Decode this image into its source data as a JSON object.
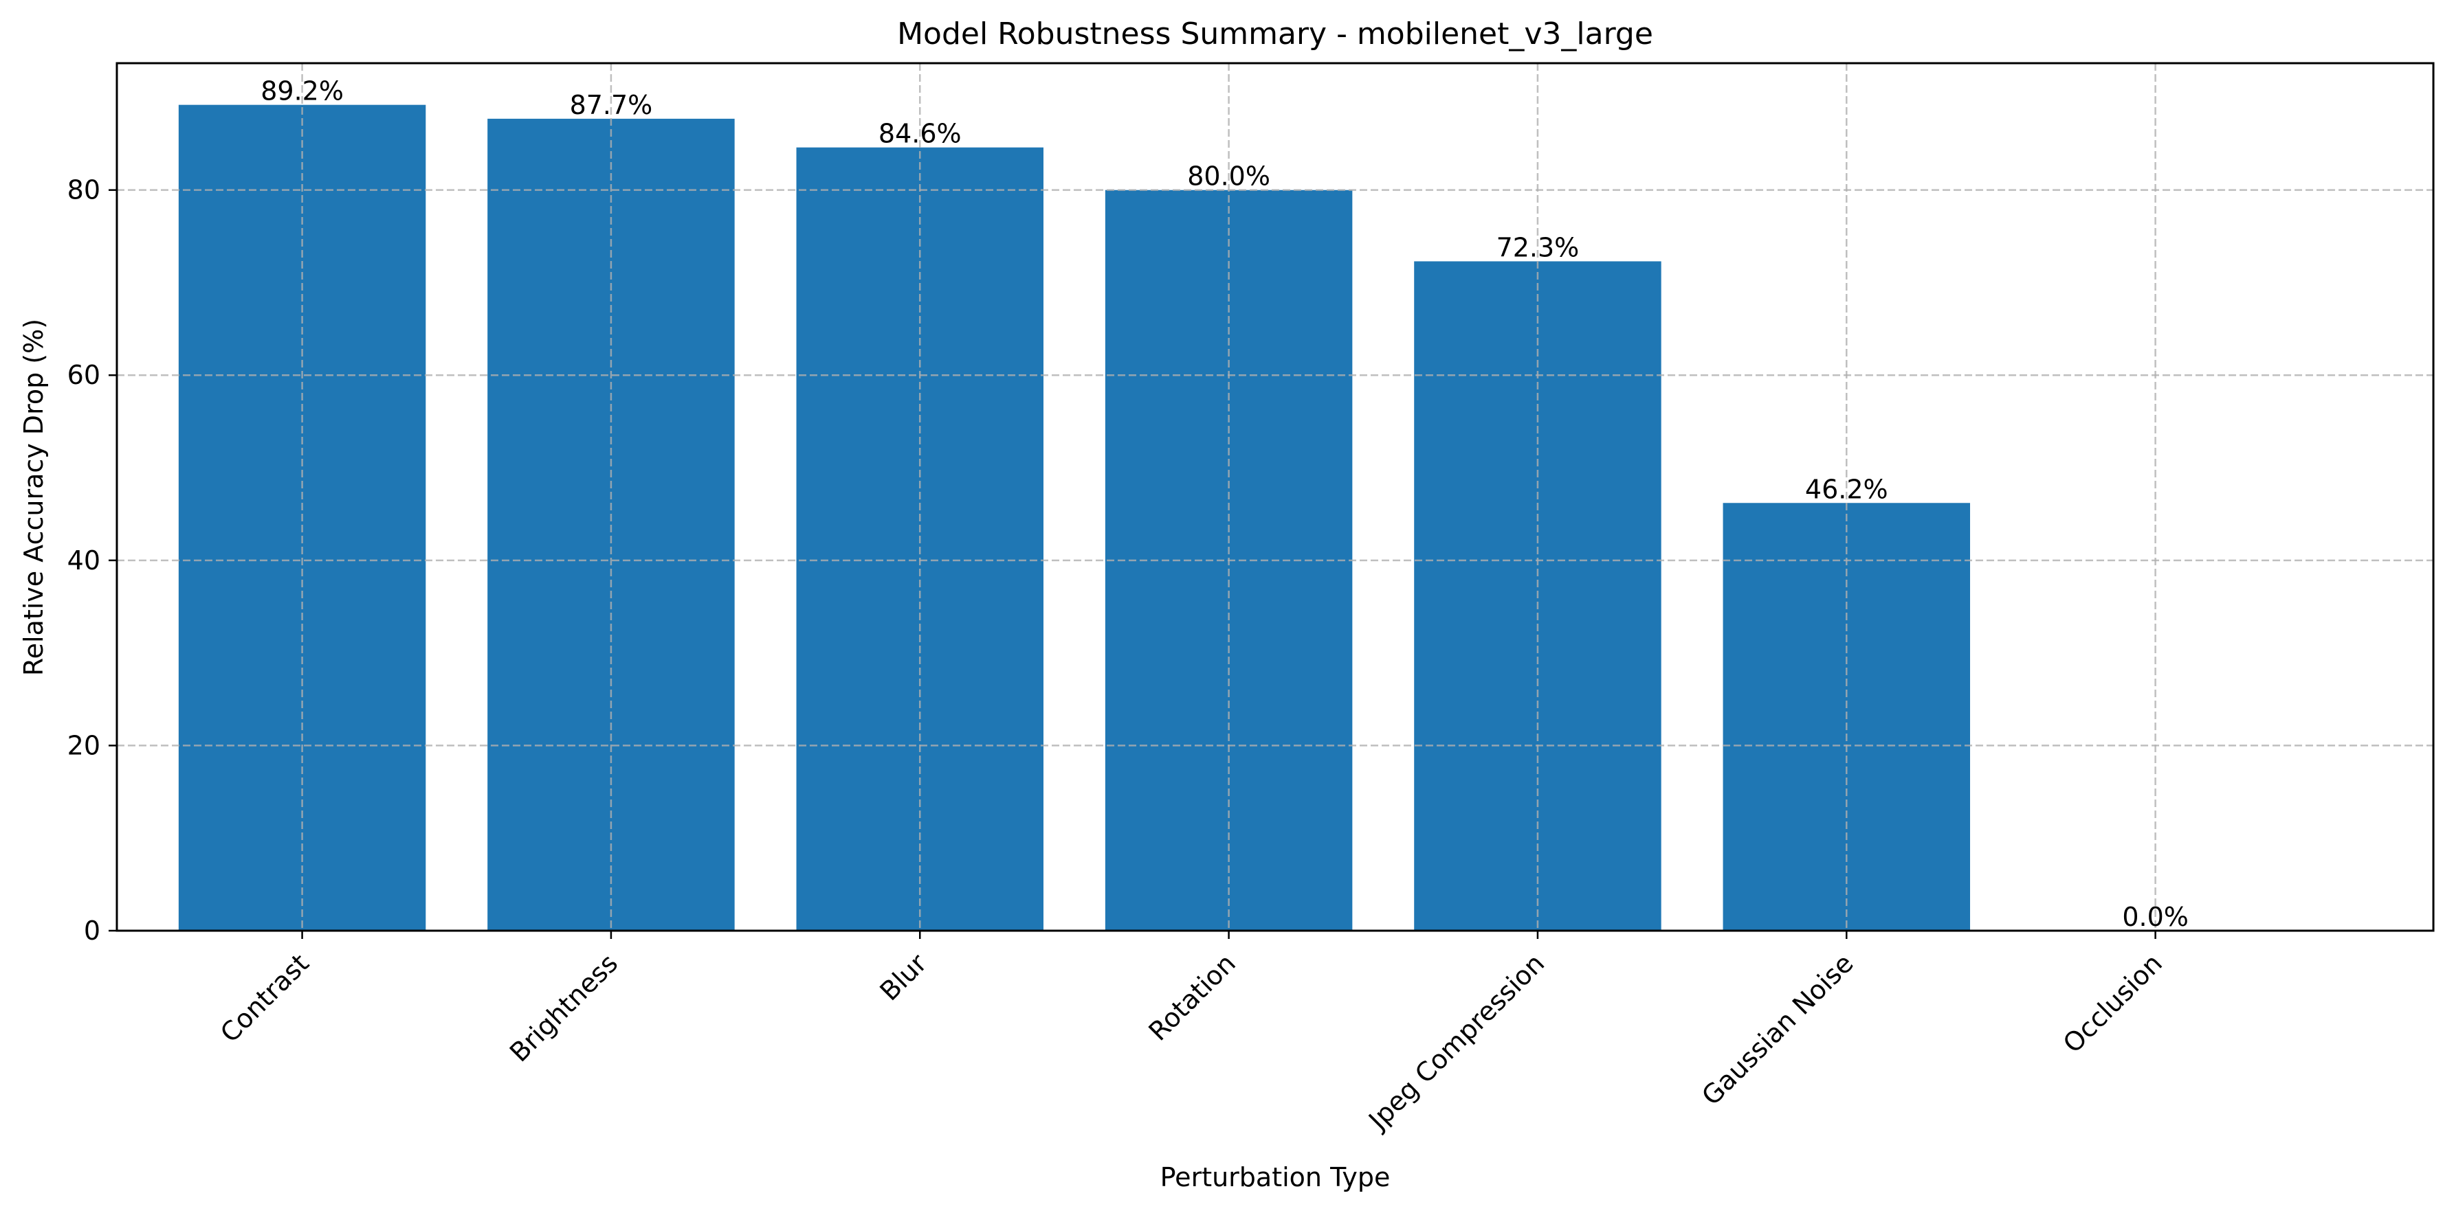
{
  "chart_data": {
    "type": "bar",
    "title": "Model Robustness Summary - mobilenet_v3_large",
    "xlabel": "Perturbation Type",
    "ylabel": "Relative Accuracy Drop (%)",
    "categories": [
      "Contrast",
      "Brightness",
      "Blur",
      "Rotation",
      "Jpeg Compression",
      "Gaussian Noise",
      "Occlusion"
    ],
    "values": [
      89.2,
      87.7,
      84.6,
      80.0,
      72.3,
      46.2,
      0.0
    ],
    "value_labels": [
      "89.2%",
      "87.7%",
      "84.6%",
      "80.0%",
      "72.3%",
      "46.2%",
      "0.0%"
    ],
    "ylim": [
      0,
      93.7
    ],
    "yticks": [
      0,
      20,
      40,
      60,
      80
    ],
    "ytick_labels": [
      "0",
      "20",
      "40",
      "60",
      "80"
    ],
    "grid": true,
    "bar_color": "#1f77b4",
    "grid_color": "#b0b0b0"
  }
}
